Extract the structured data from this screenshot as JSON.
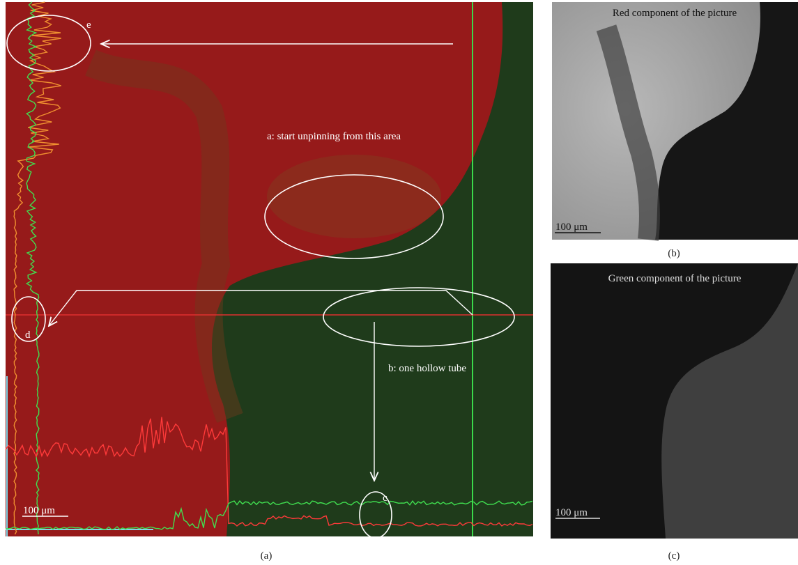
{
  "panels": [
    {
      "label": "(a)",
      "scale_bar": "100 μm",
      "annotations": [
        "e",
        "a: start unpinning from this area",
        "d",
        "b: one hollow tube",
        "c"
      ]
    },
    {
      "label": "(b)",
      "scale_bar": "100 μm",
      "caption": "Red component of the picture"
    },
    {
      "label": "(c)",
      "scale_bar": "100 μm",
      "caption": "Green component of the picture"
    }
  ]
}
